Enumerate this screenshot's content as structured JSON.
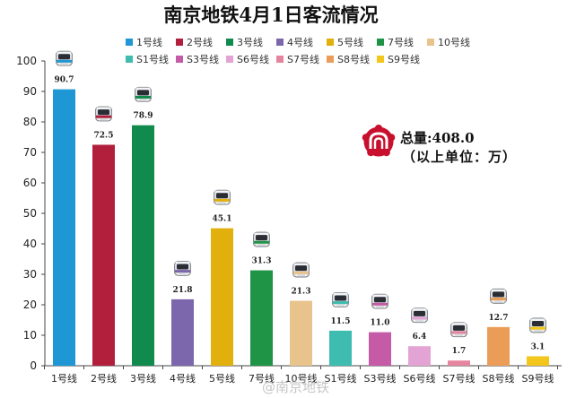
{
  "chart_data": {
    "type": "bar",
    "title": "南京地铁4月1日客流情况",
    "xlabel": "",
    "ylabel": "",
    "categories": [
      "1号线",
      "2号线",
      "3号线",
      "4号线",
      "5号线",
      "7号线",
      "10号线",
      "S1号线",
      "S3号线",
      "S6号线",
      "S7号线",
      "S8号线",
      "S9号线"
    ],
    "values": [
      90.7,
      72.5,
      78.9,
      21.8,
      45.1,
      31.3,
      21.3,
      11.5,
      11.0,
      6.4,
      1.7,
      12.7,
      3.1
    ],
    "colors": [
      "#1f97d4",
      "#b21f3d",
      "#118a4d",
      "#7c67ad",
      "#e1b00d",
      "#1f9446",
      "#e8c38b",
      "#3ebcb0",
      "#c55aa6",
      "#e3a3d5",
      "#e6849f",
      "#eb9d58",
      "#f3c61b"
    ],
    "ylim": [
      0,
      100
    ],
    "yticks": [
      0,
      10,
      20,
      30,
      40,
      50,
      60,
      70,
      80,
      90,
      100
    ],
    "grid": false,
    "data_labels": true,
    "point_icon": "train-front-icon",
    "legend": {
      "placement": "top",
      "entries": [
        "1号线",
        "2号线",
        "3号线",
        "4号线",
        "5号线",
        "7号线",
        "10号线",
        "S1号线",
        "S3号线",
        "S6号线",
        "S7号线",
        "S8号线",
        "S9号线"
      ]
    }
  },
  "annotation": {
    "logo_icon": "nanjing-metro-logo-icon",
    "logo_color": "#c8102e",
    "total": "总量:408.0",
    "unit_note": "（以上单位：万）"
  },
  "watermark": "@南京地铁"
}
